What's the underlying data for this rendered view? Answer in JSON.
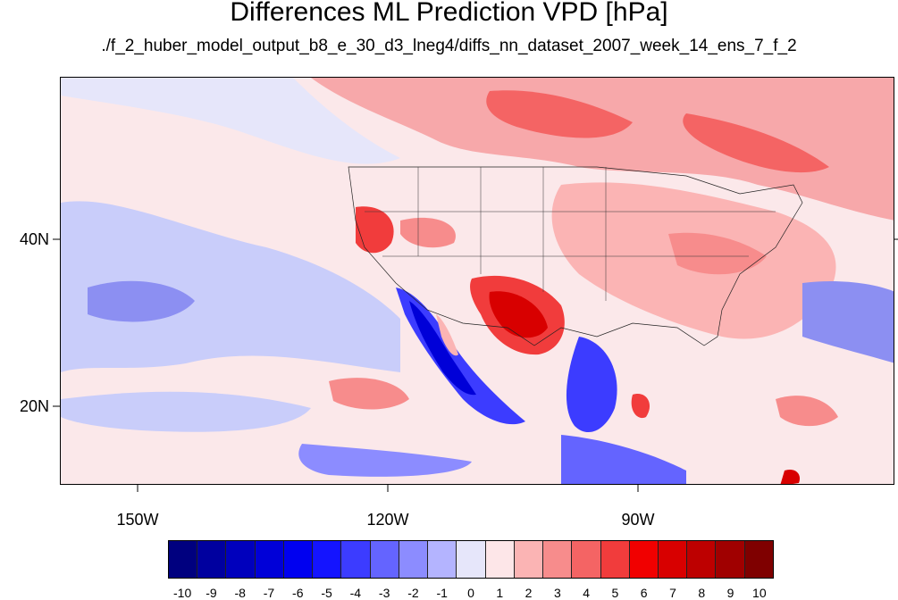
{
  "header": {
    "title": "Differences ML Prediction VPD [hPa]",
    "subtitle": "./f_2_huber_model_output_b8_e_30_d3_lneg4/diffs_nn_dataset_2007_week_14_ens_7_f_2"
  },
  "axes": {
    "lat_labels": [
      "40N",
      "20N"
    ],
    "lon_labels": [
      "150W",
      "120W",
      "90W"
    ]
  },
  "colorbar": {
    "labels": [
      "-10",
      "-9",
      "-8",
      "-7",
      "-6",
      "-5",
      "-4",
      "-3",
      "-2",
      "-1",
      "0",
      "1",
      "2",
      "3",
      "4",
      "5",
      "6",
      "7",
      "8",
      "9",
      "10"
    ],
    "colors": [
      "#00007f",
      "#00009f",
      "#0000bd",
      "#0000d8",
      "#0000f0",
      "#1414ff",
      "#3c3cff",
      "#6464ff",
      "#8c8cff",
      "#b4b4ff",
      "#e6e6fa",
      "#fde6e8",
      "#fbb4b4",
      "#f78c8c",
      "#f46464",
      "#f13c3c",
      "#f10000",
      "#d80000",
      "#bd0000",
      "#a00000",
      "#7f0000"
    ]
  }
}
